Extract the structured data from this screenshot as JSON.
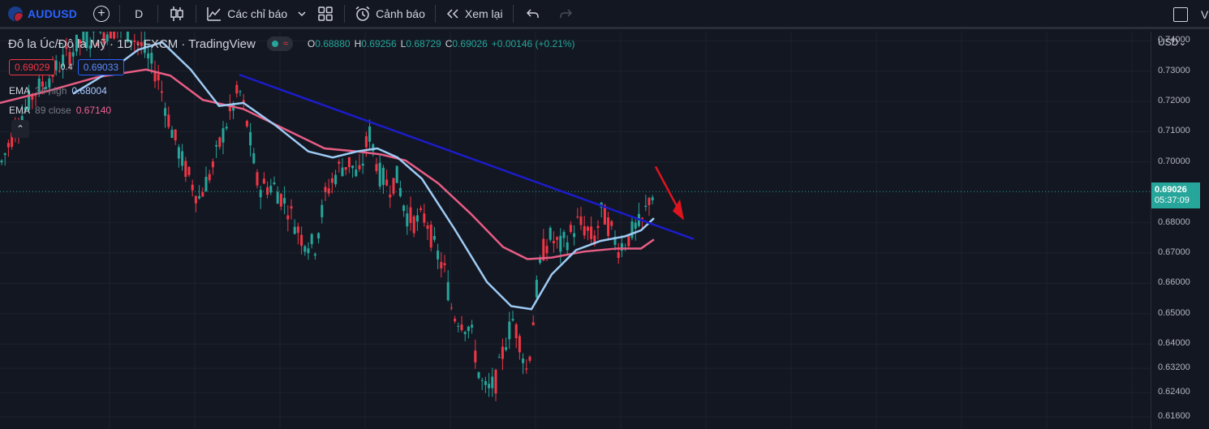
{
  "toolbar": {
    "symbol": "AUDUSD",
    "add_symbol_icon": "plus-circle-icon",
    "interval": "D",
    "chart_type_icon": "candles-icon",
    "indicators_label": "Các chỉ báo",
    "indicators_icon": "chart-line-icon",
    "layout_icon": "grid-layout-icon",
    "alert_label": "Cảnh báo",
    "alert_icon": "alarm-clock-icon",
    "replay_label": "Xem lại",
    "replay_icon": "rewind-icon",
    "undo_icon": "undo-icon",
    "redo_icon": "redo-icon",
    "fullscreen_icon": "square-icon",
    "right_cut_text": "V"
  },
  "legend": {
    "title": "Đô la Úc/Đô la Mỹ · 1D · FXCM · TradingView",
    "ohlc": [
      {
        "k": "O",
        "v": "0.68880"
      },
      {
        "k": "H",
        "v": "0.69256"
      },
      {
        "k": "L",
        "v": "0.68729"
      },
      {
        "k": "C",
        "v": "0.69026"
      },
      {
        "k": "",
        "v": "+0.00146 (+0.21%)"
      }
    ],
    "bid": "0.69029",
    "spread": "0.4",
    "ask": "0.69033",
    "indicators": [
      {
        "name": "EMA",
        "params": "34 high",
        "value": "0.68004",
        "color": "#a7c8ff"
      },
      {
        "name": "EMA",
        "params": "89 close",
        "value": "0.67140",
        "color": "#f06292"
      }
    ]
  },
  "price_axis": {
    "currency": "USD",
    "ticks": [
      "0.74000",
      "0.73000",
      "0.72000",
      "0.71000",
      "0.70000",
      "0.68000",
      "0.67000",
      "0.66000",
      "0.65000",
      "0.64000",
      "0.63200",
      "0.62400",
      "0.61600"
    ],
    "last_price": "0.69026",
    "countdown": "05:37:09"
  },
  "colors": {
    "background": "#131722",
    "up": "#26a69a",
    "down": "#f23645",
    "ema34": "#9ecbf4",
    "ema89": "#e85d84",
    "trendline": "#1c1cc9",
    "arrow": "#e0141e"
  },
  "chart_data": {
    "type": "candlestick",
    "ylim": [
      0.612,
      0.743
    ],
    "last_price": 0.69026,
    "trendline": [
      [
        0.7288
      ],
      [
        0.6746
      ]
    ],
    "annotation": "red arrow pointing down-right"
  }
}
